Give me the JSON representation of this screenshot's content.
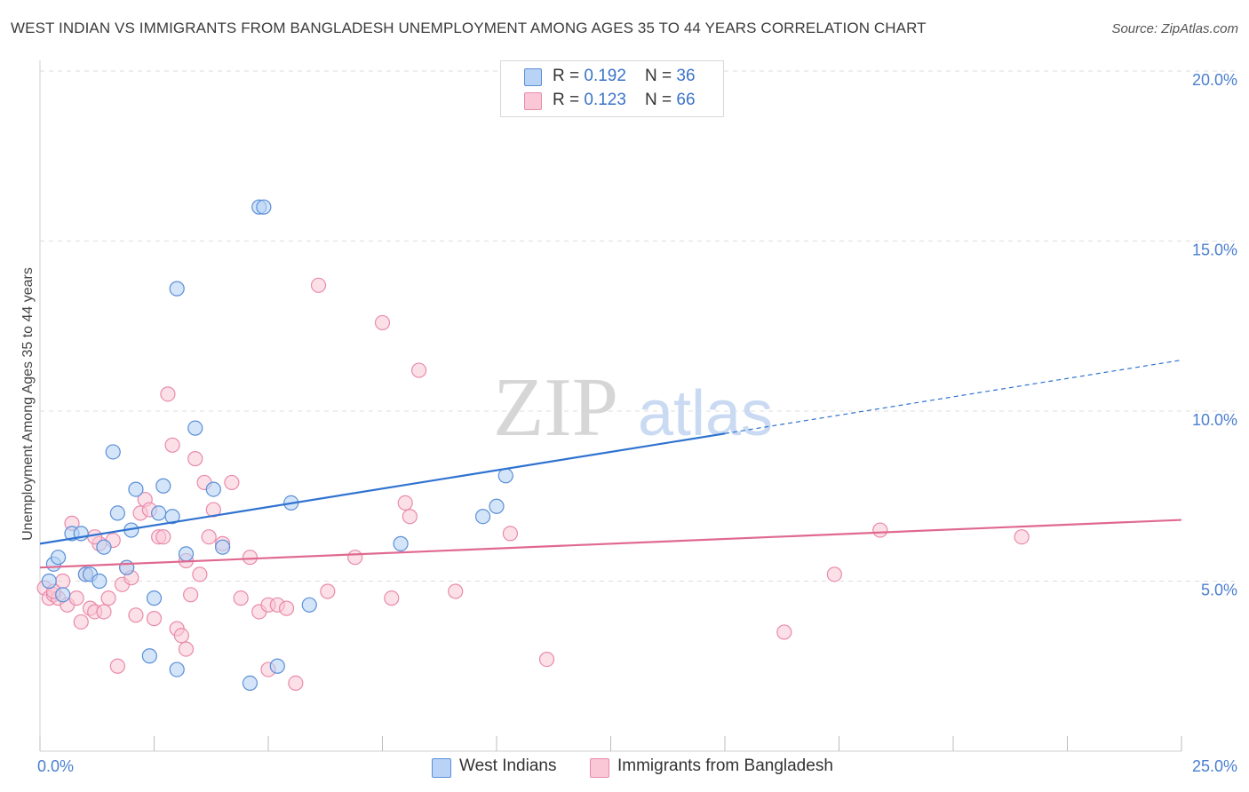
{
  "title": "WEST INDIAN VS IMMIGRANTS FROM BANGLADESH UNEMPLOYMENT AMONG AGES 35 TO 44 YEARS CORRELATION CHART",
  "source": "Source: ZipAtlas.com",
  "watermark": {
    "zip": "ZIP",
    "atlas": "atlas"
  },
  "legend": {
    "series1": {
      "r_label": "R = ",
      "r_value": "0.192",
      "n_label": "N = ",
      "n_value": "36"
    },
    "series2": {
      "r_label": "R = ",
      "r_value": "0.123",
      "n_label": "N = ",
      "n_value": "66"
    }
  },
  "colors": {
    "blue_fill": "#b8d3f5",
    "blue_stroke": "#5b8fd6",
    "blue_line": "#2f72d0",
    "pink_fill": "#f9c7d6",
    "pink_stroke": "#e98aaa",
    "pink_line": "#e0698f",
    "grid": "#dddddd",
    "tick_text": "#4a7fd0"
  },
  "chart_data": {
    "type": "scatter",
    "title": "WEST INDIAN VS IMMIGRANTS FROM BANGLADESH UNEMPLOYMENT AMONG AGES 35 TO 44 YEARS CORRELATION CHART",
    "xlabel": "",
    "ylabel": "Unemployment Among Ages 35 to 44 years",
    "xlim": [
      0,
      25
    ],
    "ylim": [
      0,
      20
    ],
    "x_tick_labels": [
      "0.0%",
      "25.0%"
    ],
    "y_ticks": [
      5,
      10,
      15,
      20
    ],
    "y_tick_labels": [
      "5.0%",
      "10.0%",
      "15.0%",
      "20.0%"
    ],
    "series": [
      {
        "name": "West Indians",
        "color": "#5b8fd6",
        "trend": {
          "x0": 0,
          "y0": 6.1,
          "x1": 25,
          "y1": 11.5,
          "solid_until_x": 15
        },
        "points": [
          [
            0.2,
            5.0
          ],
          [
            0.3,
            5.5
          ],
          [
            0.4,
            5.7
          ],
          [
            0.7,
            6.4
          ],
          [
            0.9,
            6.4
          ],
          [
            1.0,
            5.2
          ],
          [
            1.1,
            5.2
          ],
          [
            1.3,
            5.0
          ],
          [
            1.4,
            6.0
          ],
          [
            1.6,
            8.8
          ],
          [
            1.7,
            7.0
          ],
          [
            1.9,
            5.4
          ],
          [
            2.0,
            6.5
          ],
          [
            2.1,
            7.7
          ],
          [
            2.5,
            4.5
          ],
          [
            2.6,
            7.0
          ],
          [
            2.7,
            7.8
          ],
          [
            2.9,
            6.9
          ],
          [
            3.0,
            13.6
          ],
          [
            3.2,
            5.8
          ],
          [
            3.4,
            9.5
          ],
          [
            3.8,
            7.7
          ],
          [
            4.0,
            6.0
          ],
          [
            4.6,
            2.0
          ],
          [
            4.8,
            16.0
          ],
          [
            4.9,
            16.0
          ],
          [
            5.2,
            2.5
          ],
          [
            5.5,
            7.3
          ],
          [
            5.9,
            4.3
          ],
          [
            7.9,
            6.1
          ],
          [
            9.7,
            6.9
          ],
          [
            10.0,
            7.2
          ],
          [
            10.2,
            8.1
          ],
          [
            2.4,
            2.8
          ],
          [
            3.0,
            2.4
          ],
          [
            0.5,
            4.6
          ]
        ]
      },
      {
        "name": "Immigrants from Bangladesh",
        "color": "#e98aaa",
        "trend": {
          "x0": 0,
          "y0": 5.4,
          "x1": 25,
          "y1": 6.8
        },
        "points": [
          [
            0.1,
            4.8
          ],
          [
            0.2,
            4.5
          ],
          [
            0.3,
            4.6
          ],
          [
            0.4,
            4.5
          ],
          [
            0.5,
            5.0
          ],
          [
            0.6,
            4.3
          ],
          [
            0.7,
            6.7
          ],
          [
            0.8,
            4.5
          ],
          [
            0.9,
            3.8
          ],
          [
            1.0,
            5.2
          ],
          [
            1.1,
            4.2
          ],
          [
            1.2,
            4.1
          ],
          [
            1.3,
            6.1
          ],
          [
            1.4,
            4.1
          ],
          [
            1.5,
            4.5
          ],
          [
            1.6,
            6.2
          ],
          [
            1.7,
            2.5
          ],
          [
            1.8,
            4.9
          ],
          [
            1.9,
            5.4
          ],
          [
            2.0,
            5.1
          ],
          [
            2.1,
            4.0
          ],
          [
            2.2,
            7.0
          ],
          [
            2.3,
            7.4
          ],
          [
            2.4,
            7.1
          ],
          [
            2.5,
            3.9
          ],
          [
            2.6,
            6.3
          ],
          [
            2.7,
            6.3
          ],
          [
            2.8,
            10.5
          ],
          [
            2.9,
            9.0
          ],
          [
            3.0,
            3.6
          ],
          [
            3.1,
            3.4
          ],
          [
            3.2,
            5.6
          ],
          [
            3.3,
            4.6
          ],
          [
            3.4,
            8.6
          ],
          [
            3.5,
            5.2
          ],
          [
            3.6,
            7.9
          ],
          [
            3.7,
            6.3
          ],
          [
            3.8,
            7.1
          ],
          [
            4.0,
            6.1
          ],
          [
            4.2,
            7.9
          ],
          [
            4.4,
            4.5
          ],
          [
            4.6,
            5.7
          ],
          [
            4.8,
            4.1
          ],
          [
            5.0,
            4.3
          ],
          [
            5.2,
            4.3
          ],
          [
            5.4,
            4.2
          ],
          [
            5.6,
            2.0
          ],
          [
            6.1,
            13.7
          ],
          [
            6.3,
            4.7
          ],
          [
            6.9,
            5.7
          ],
          [
            7.5,
            12.6
          ],
          [
            7.7,
            4.5
          ],
          [
            8.0,
            7.3
          ],
          [
            8.1,
            6.9
          ],
          [
            8.3,
            11.2
          ],
          [
            9.1,
            4.7
          ],
          [
            10.3,
            6.4
          ],
          [
            11.1,
            2.7
          ],
          [
            16.3,
            3.5
          ],
          [
            17.4,
            5.2
          ],
          [
            18.4,
            6.5
          ],
          [
            21.5,
            6.3
          ],
          [
            0.3,
            4.7
          ],
          [
            3.2,
            3.0
          ],
          [
            1.2,
            6.3
          ],
          [
            5.0,
            2.4
          ]
        ]
      }
    ]
  },
  "bottom_legend": {
    "series1_label": "West Indians",
    "series2_label": "Immigrants from Bangladesh"
  }
}
